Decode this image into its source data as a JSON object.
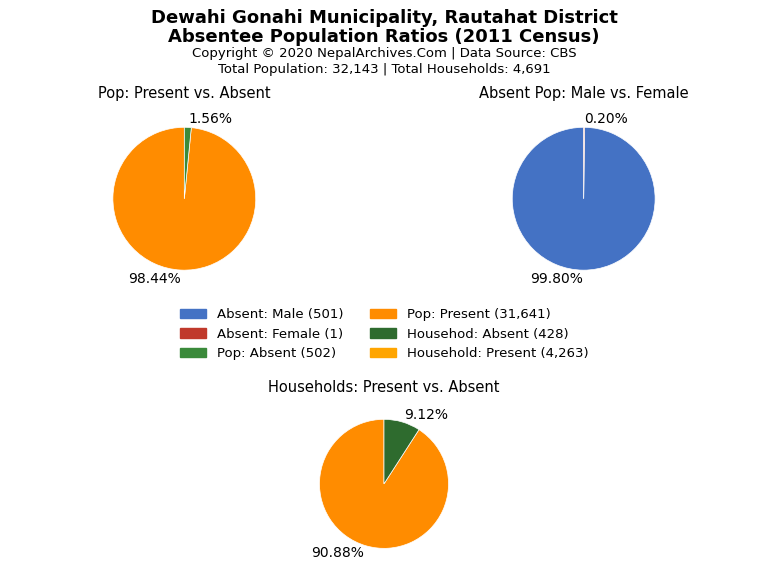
{
  "title": "Dewahi Gonahi Municipality, Rautahat District",
  "subtitle": "Absentee Population Ratios (2011 Census)",
  "annotations": [
    "Copyright © 2020 NepalArchives.Com | Data Source: CBS",
    "Total Population: 32,143 | Total Households: 4,691"
  ],
  "legend_entries": [
    {
      "label": "Absent: Male (501)",
      "color": "#4472C4"
    },
    {
      "label": "Absent: Female (1)",
      "color": "#C0392B"
    },
    {
      "label": "Pop: Absent (502)",
      "color": "#3A8A3A"
    },
    {
      "label": "Pop: Present (31,641)",
      "color": "#FF8C00"
    },
    {
      "label": "Househod: Absent (428)",
      "color": "#2E6B2E"
    },
    {
      "label": "Household: Present (4,263)",
      "color": "#FFA500"
    }
  ],
  "chart_data": [
    {
      "type": "pie",
      "title": "Pop: Present vs. Absent",
      "values": [
        98.44,
        1.56
      ],
      "value_labels": [
        "98.44%",
        "1.56%"
      ],
      "colors": [
        "#FF8C00",
        "#3A8A3A"
      ],
      "data_labels": true
    },
    {
      "type": "pie",
      "title": "Absent Pop: Male vs. Female",
      "values": [
        99.8,
        0.2
      ],
      "value_labels": [
        "99.80%",
        "0.20%"
      ],
      "colors": [
        "#4472C4",
        "#C0392B"
      ],
      "data_labels": true
    },
    {
      "type": "pie",
      "title": "Households: Present vs. Absent",
      "values": [
        90.88,
        9.12
      ],
      "value_labels": [
        "90.88%",
        "9.12%"
      ],
      "colors": [
        "#FF8C00",
        "#2E6B2E"
      ],
      "data_labels": true
    }
  ]
}
